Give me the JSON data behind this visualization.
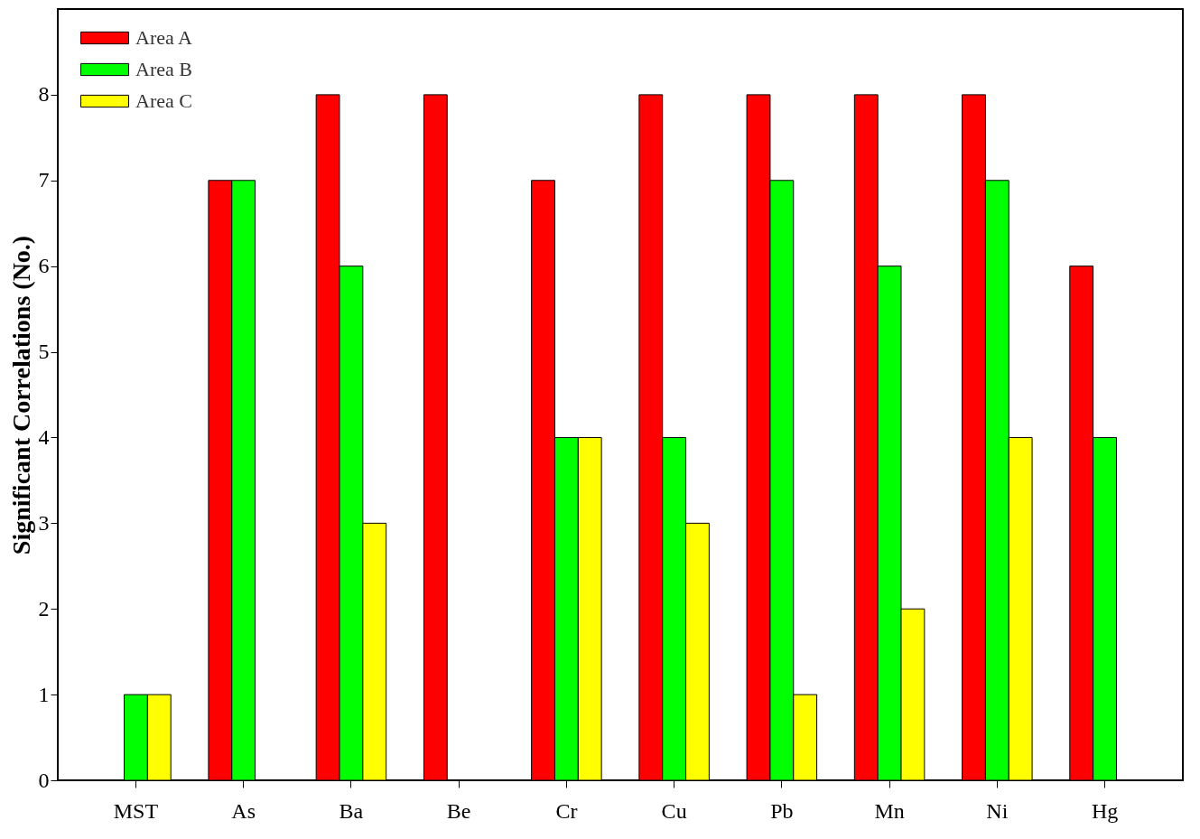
{
  "chart_data": {
    "type": "bar",
    "ylabel": "Significant Correlations (No.)",
    "categories": [
      "MST",
      "As",
      "Ba",
      "Be",
      "Cr",
      "Cu",
      "Pb",
      "Mn",
      "Ni",
      "Hg"
    ],
    "series": [
      {
        "name": "Area A",
        "color": "#ff0000",
        "values": [
          null,
          7,
          8,
          8,
          7,
          8,
          8,
          8,
          8,
          6
        ]
      },
      {
        "name": "Area B",
        "color": "#00ff00",
        "values": [
          1,
          7,
          6,
          null,
          4,
          4,
          7,
          6,
          7,
          4
        ]
      },
      {
        "name": "Area C",
        "color": "#ffff00",
        "values": [
          1,
          null,
          3,
          null,
          4,
          3,
          1,
          2,
          4,
          null
        ]
      }
    ],
    "ylim": [
      0,
      9
    ],
    "yticks": [
      0,
      1,
      2,
      3,
      4,
      5,
      6,
      7,
      8
    ],
    "grid": false,
    "legend": "top left"
  }
}
